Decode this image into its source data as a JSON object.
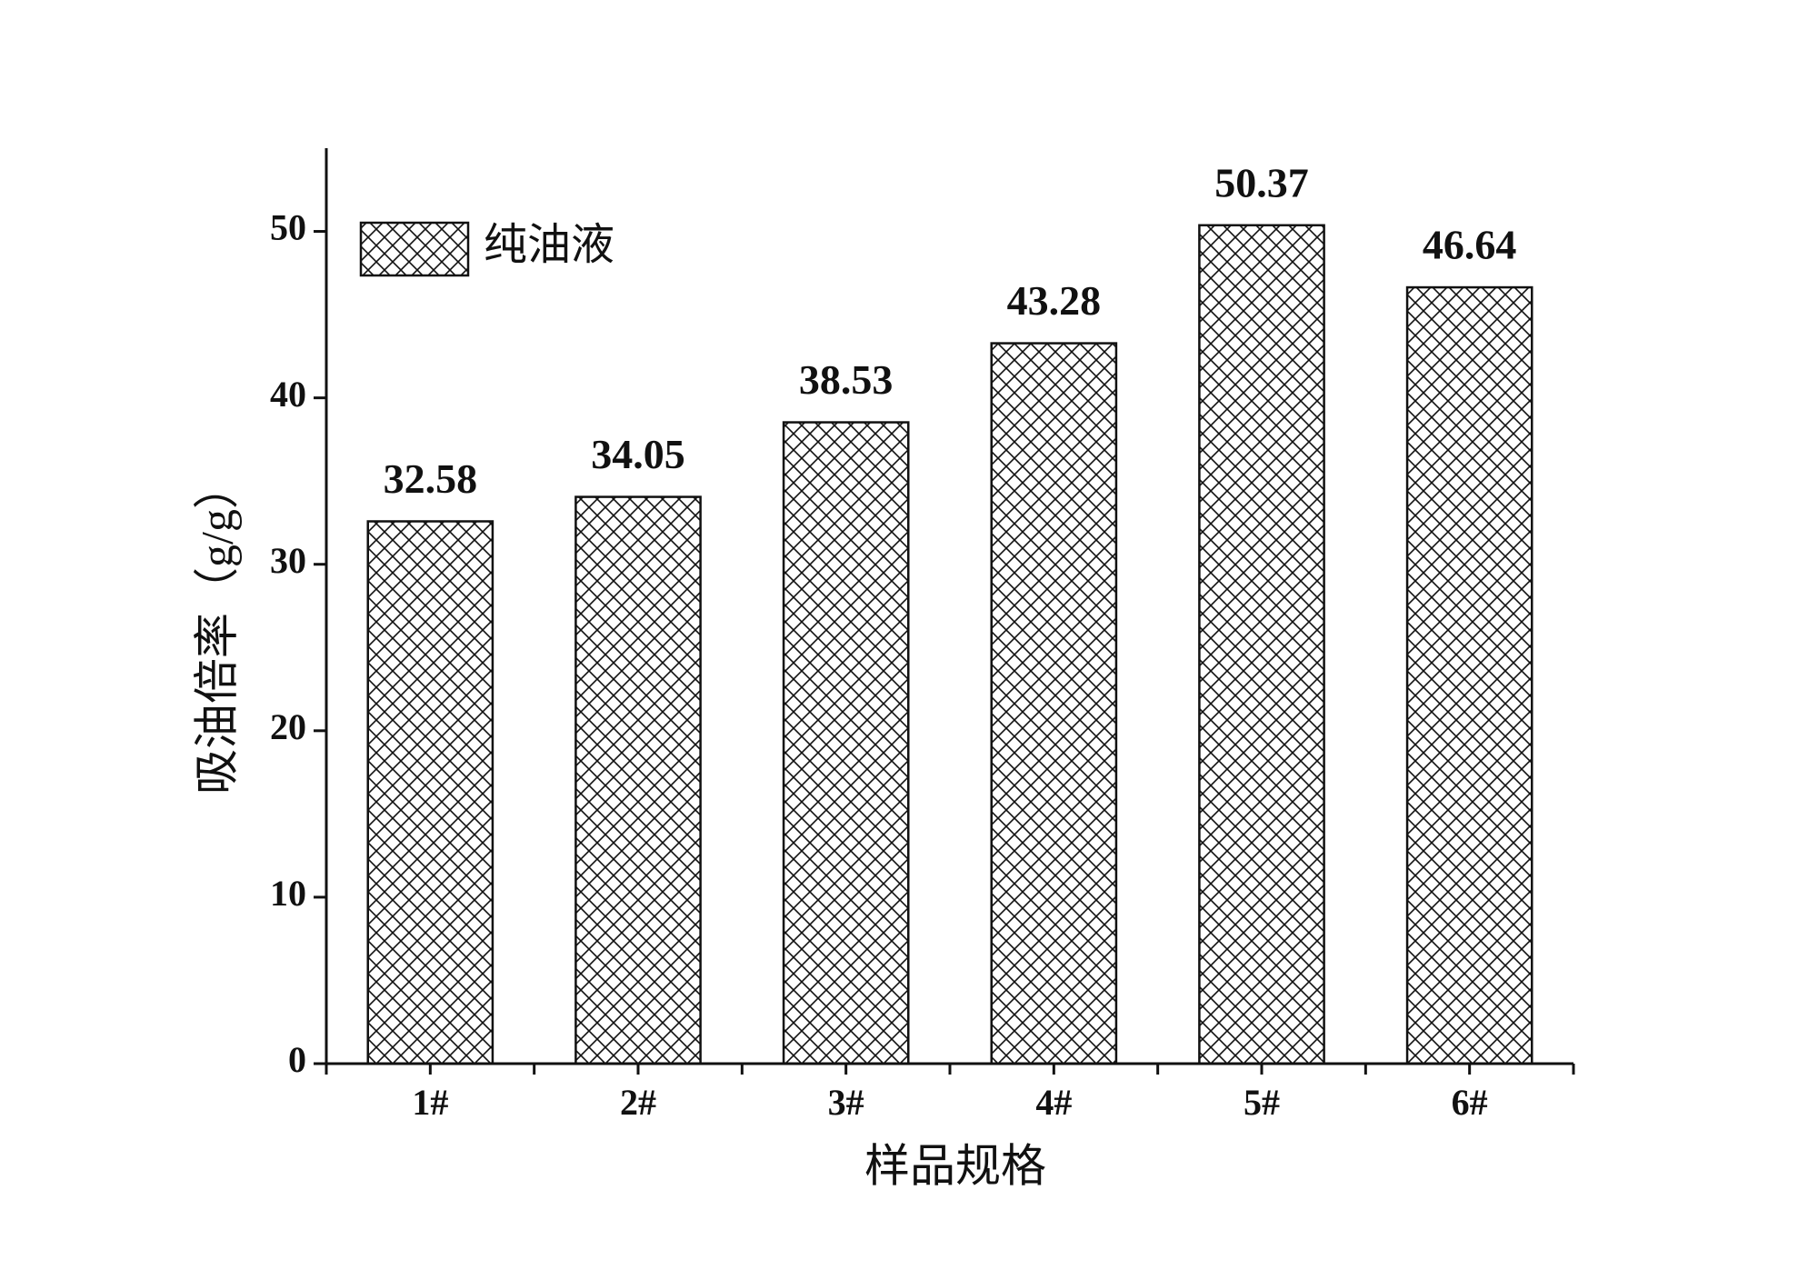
{
  "chart_data": {
    "type": "bar",
    "x_label": "样品规格",
    "y_label": "吸油倍率（g/g）",
    "categories": [
      "1#",
      "2#",
      "3#",
      "4#",
      "5#",
      "6#"
    ],
    "series": [
      {
        "name": "纯油液",
        "color": "#111111",
        "values": [
          32.58,
          34.05,
          38.53,
          43.28,
          50.37,
          46.64
        ]
      }
    ],
    "ylim": [
      0,
      55
    ],
    "yticks": [
      0,
      10,
      20,
      30,
      40,
      50
    ],
    "legend": "upper left"
  }
}
